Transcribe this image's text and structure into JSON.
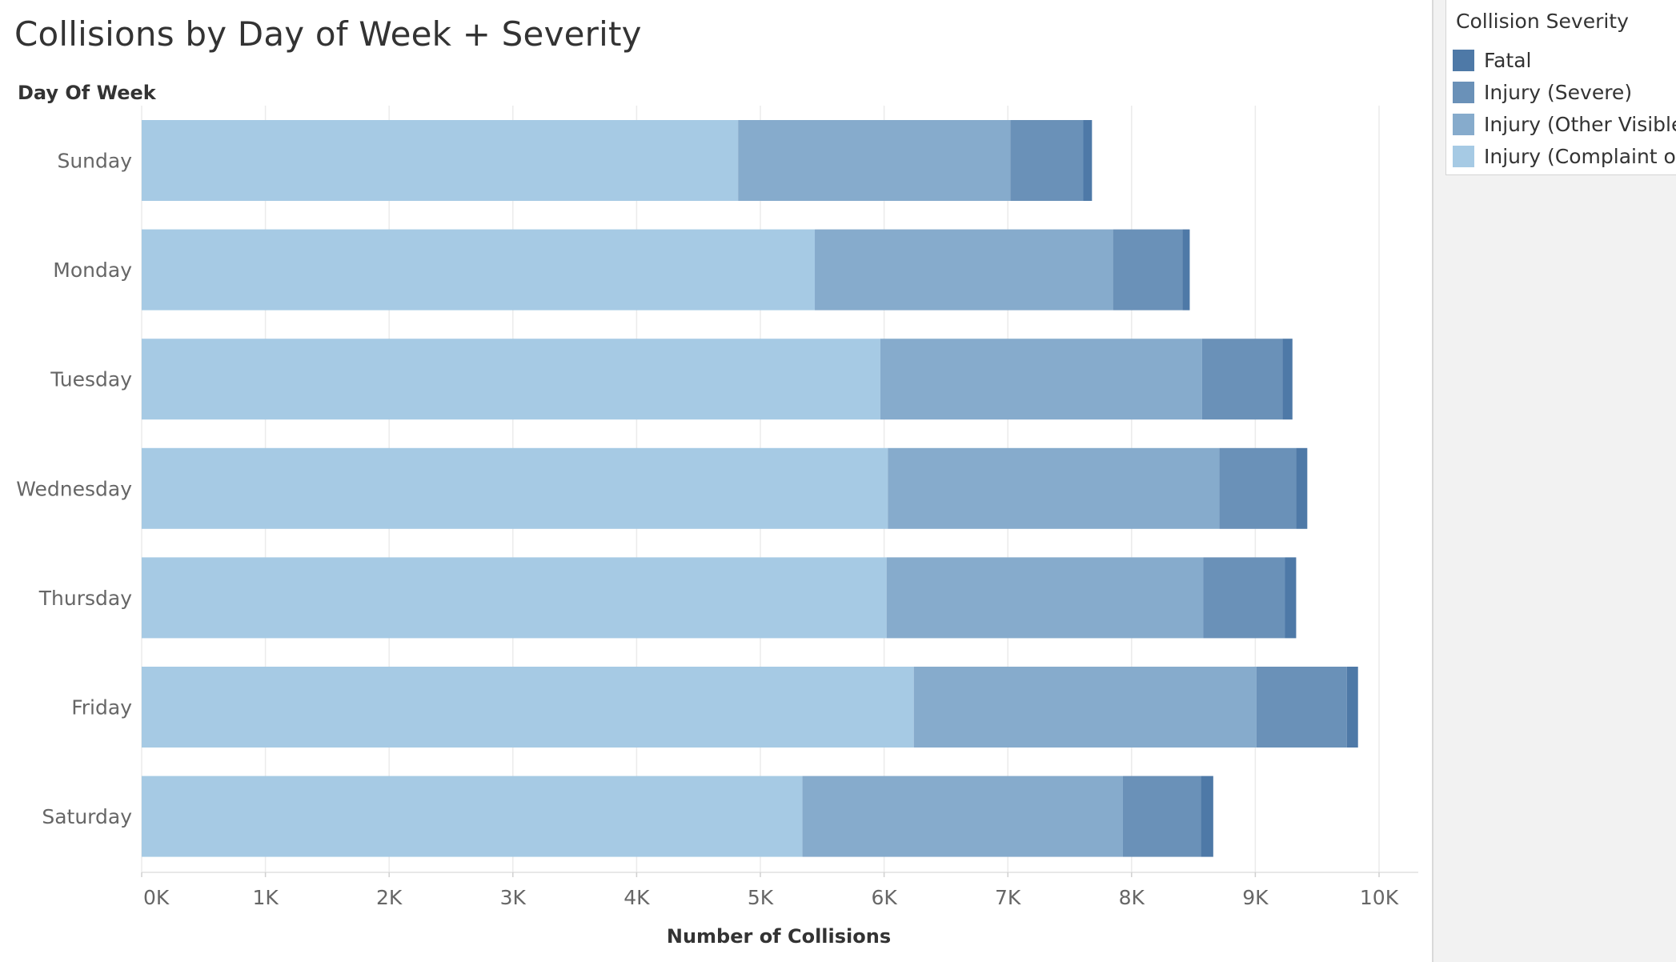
{
  "title": "Collisions by Day of Week + Severity",
  "legend": {
    "title": "Collision Severity",
    "items": [
      {
        "label": "Fatal",
        "color": "#4e79a7"
      },
      {
        "label": "Injury (Severe)",
        "color": "#6a91b8"
      },
      {
        "label": "Injury (Other Visible)",
        "color": "#86abcc"
      },
      {
        "label": "Injury (Complaint of ...",
        "color": "#a6cae4"
      }
    ]
  },
  "chart_data": {
    "type": "bar",
    "orientation": "horizontal",
    "stacked": true,
    "title": "Collisions by Day of Week + Severity",
    "ylabel": "Day Of Week",
    "xlabel": "Number of Collisions",
    "xlim": [
      0,
      10300
    ],
    "xticks": [
      0,
      1000,
      2000,
      3000,
      4000,
      5000,
      6000,
      7000,
      8000,
      9000,
      10000
    ],
    "xtick_labels": [
      "0K",
      "1K",
      "2K",
      "3K",
      "4K",
      "5K",
      "6K",
      "7K",
      "8K",
      "9K",
      "10K"
    ],
    "grid": "vertical",
    "legend_position": "right",
    "categories": [
      "Sunday",
      "Monday",
      "Tuesday",
      "Wednesday",
      "Thursday",
      "Friday",
      "Saturday"
    ],
    "series": [
      {
        "name": "Injury (Complaint of ...",
        "color": "#a6cae4",
        "values": [
          4820,
          5440,
          5970,
          6030,
          6020,
          6240,
          5340
        ]
      },
      {
        "name": "Injury (Other Visible)",
        "color": "#86abcc",
        "values": [
          2200,
          2410,
          2600,
          2680,
          2560,
          2770,
          2590
        ]
      },
      {
        "name": "Injury (Severe)",
        "color": "#6a91b8",
        "values": [
          590,
          560,
          650,
          620,
          660,
          730,
          630
        ]
      },
      {
        "name": "Fatal",
        "color": "#4e79a7",
        "values": [
          70,
          60,
          80,
          90,
          90,
          90,
          100
        ]
      }
    ]
  }
}
